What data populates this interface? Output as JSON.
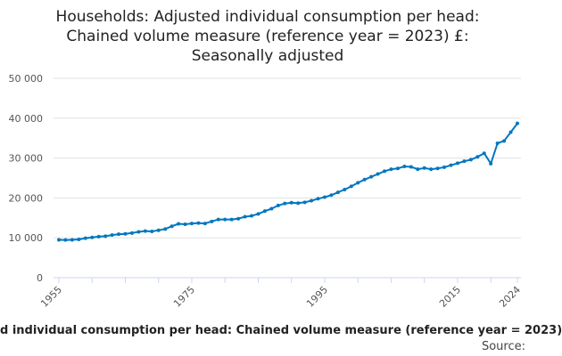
{
  "chart_data": {
    "type": "line",
    "title": "Households: Adjusted individual consumption per head: Chained volume measure (reference year = 2023) £: Seasonally adjusted",
    "title_lines": [
      "Households: Adjusted individual consumption per head:",
      "Chained volume measure (reference year = 2023) £:",
      "Seasonally adjusted"
    ],
    "xlabel": "",
    "ylabel": "",
    "ylim": [
      0,
      50000
    ],
    "xlim": [
      1955,
      2024
    ],
    "yticks": [
      0,
      10000,
      20000,
      30000,
      40000,
      50000
    ],
    "ytick_labels": [
      "0",
      "10 000",
      "20 000",
      "30 000",
      "40 000",
      "50 000"
    ],
    "xtick_labels": [
      "1955",
      "1975",
      "1995",
      "2015",
      "2024"
    ],
    "grid": true,
    "color": "#0077c0",
    "series": [
      {
        "name": "Households: Adjusted individual consumption per head",
        "x": [
          1955,
          1956,
          1957,
          1958,
          1959,
          1960,
          1961,
          1962,
          1963,
          1964,
          1965,
          1966,
          1967,
          1968,
          1969,
          1970,
          1971,
          1972,
          1973,
          1974,
          1975,
          1976,
          1977,
          1978,
          1979,
          1980,
          1981,
          1982,
          1983,
          1984,
          1985,
          1986,
          1987,
          1988,
          1989,
          1990,
          1991,
          1992,
          1993,
          1994,
          1995,
          1996,
          1997,
          1998,
          1999,
          2000,
          2001,
          2002,
          2003,
          2004,
          2005,
          2006,
          2007,
          2008,
          2009,
          2010,
          2011,
          2012,
          2013,
          2014,
          2015,
          2016,
          2017,
          2018,
          2019,
          2020,
          2021,
          2022,
          2023,
          2024
        ],
        "values": [
          9500,
          9450,
          9500,
          9600,
          9900,
          10100,
          10300,
          10400,
          10700,
          10900,
          11000,
          11200,
          11500,
          11700,
          11600,
          11900,
          12200,
          12900,
          13500,
          13400,
          13600,
          13700,
          13600,
          14100,
          14600,
          14600,
          14600,
          14800,
          15300,
          15500,
          16000,
          16700,
          17300,
          18100,
          18600,
          18800,
          18700,
          18900,
          19300,
          19800,
          20200,
          20700,
          21400,
          22100,
          22900,
          23800,
          24600,
          25300,
          26000,
          26700,
          27200,
          27400,
          27900,
          27800,
          27200,
          27500,
          27200,
          27400,
          27700,
          28200,
          28700,
          29200,
          29600,
          30300,
          31200,
          28600,
          33700,
          34300,
          36500,
          38700
        ]
      }
    ]
  },
  "footer": {
    "series_label": "d individual consumption per head: Chained volume measure (reference year = 2023)",
    "source_label": "Source:"
  }
}
